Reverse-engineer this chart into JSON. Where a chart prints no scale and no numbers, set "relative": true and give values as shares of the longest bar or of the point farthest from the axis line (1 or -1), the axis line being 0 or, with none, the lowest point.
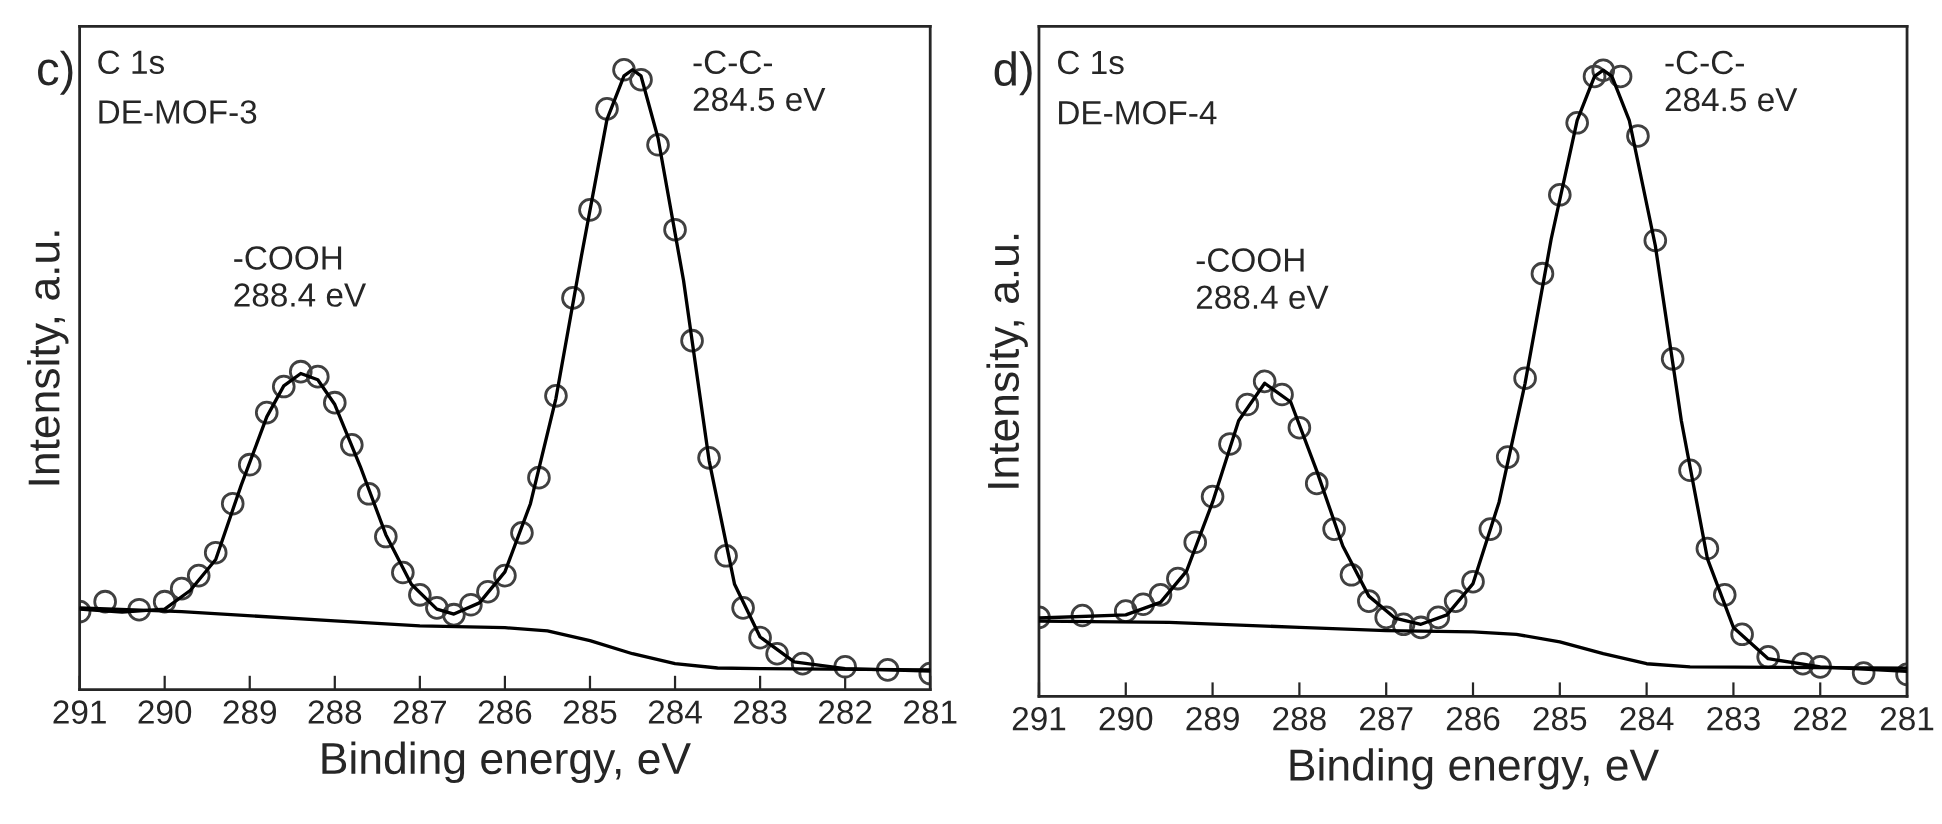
{
  "chart_data": [
    {
      "type": "line",
      "title": "c)",
      "xlabel": "Binding energy, eV",
      "ylabel": "Intensity, a.u.",
      "relative": true,
      "tick_labels": "x",
      "legend": false,
      "grid": false,
      "xlim": [
        291,
        281
      ],
      "xticks": [
        291,
        290,
        289,
        288,
        287,
        286,
        285,
        284,
        283,
        282,
        281
      ],
      "annotations": [
        "C 1s",
        "DE-MOF-3",
        "-COOH\n288.4 eV",
        "-C-C-\n284.5 eV"
      ],
      "series": [
        {
          "type": "scatter",
          "marker": "circle",
          "color": "#404040",
          "x": [
            291,
            290.7,
            290.3,
            290.0,
            289.8,
            289.6,
            289.4,
            289.2,
            289.0,
            288.8,
            288.6,
            288.4,
            288.2,
            288.0,
            287.8,
            287.6,
            287.4,
            287.2,
            287.0,
            286.8,
            286.6,
            286.4,
            286.2,
            286.0,
            285.8,
            285.6,
            285.4,
            285.2,
            285.0,
            284.8,
            284.6,
            284.4,
            284.2,
            284.0,
            283.8,
            283.6,
            283.4,
            283.2,
            283.0,
            282.8,
            282.5,
            282.0,
            281.5,
            281.0
          ],
          "values": [
            0.126,
            0.142,
            0.129,
            0.142,
            0.163,
            0.184,
            0.221,
            0.3,
            0.363,
            0.447,
            0.489,
            0.513,
            0.505,
            0.463,
            0.395,
            0.316,
            0.247,
            0.189,
            0.153,
            0.132,
            0.121,
            0.137,
            0.158,
            0.184,
            0.253,
            0.342,
            0.474,
            0.632,
            0.774,
            0.937,
            1.0,
            0.984,
            0.879,
            0.742,
            0.563,
            0.374,
            0.216,
            0.132,
            0.084,
            0.058,
            0.042,
            0.037,
            0.032,
            0.026
          ]
        },
        {
          "color": "#000000",
          "x": [
            291,
            290.5,
            290.0,
            289.7,
            289.4,
            289.1,
            288.8,
            288.6,
            288.4,
            288.2,
            288.0,
            287.7,
            287.4,
            287.1,
            286.8,
            286.6,
            286.3,
            286.0,
            285.7,
            285.4,
            285.1,
            284.8,
            284.6,
            284.5,
            284.4,
            284.2,
            283.9,
            283.6,
            283.3,
            283.0,
            282.6,
            282.0,
            281.0
          ],
          "values": [
            0.13,
            0.125,
            0.13,
            0.16,
            0.21,
            0.33,
            0.44,
            0.49,
            0.51,
            0.5,
            0.46,
            0.36,
            0.25,
            0.17,
            0.13,
            0.122,
            0.14,
            0.19,
            0.3,
            0.47,
            0.7,
            0.92,
            0.99,
            1.0,
            0.99,
            0.89,
            0.66,
            0.37,
            0.17,
            0.085,
            0.045,
            0.034,
            0.03
          ]
        },
        {
          "color": "#000000",
          "x": [
            291,
            289.8,
            288.0,
            287.0,
            286.0,
            285.5,
            285.0,
            284.5,
            284.0,
            283.5,
            283.0,
            281.0
          ],
          "values": [
            0.132,
            0.126,
            0.111,
            0.103,
            0.1,
            0.095,
            0.079,
            0.058,
            0.042,
            0.035,
            0.034,
            0.032
          ]
        }
      ]
    },
    {
      "type": "line",
      "title": "d)",
      "xlabel": "Binding energy, eV",
      "ylabel": "Intensity, a.u.",
      "relative": true,
      "tick_labels": "x",
      "legend": false,
      "grid": false,
      "xlim": [
        291,
        281
      ],
      "xticks": [
        291,
        290,
        289,
        288,
        287,
        286,
        285,
        284,
        283,
        282,
        281
      ],
      "annotations": [
        "C 1s",
        "DE-MOF-4",
        "-COOH\n288.4 eV",
        "-C-C-\n284.5 eV"
      ],
      "series": [
        {
          "type": "scatter",
          "marker": "circle",
          "color": "#404040",
          "x": [
            291,
            290.5,
            290.0,
            289.8,
            289.6,
            289.4,
            289.2,
            289.0,
            288.8,
            288.6,
            288.4,
            288.2,
            288.0,
            287.8,
            287.6,
            287.4,
            287.2,
            287.0,
            286.8,
            286.6,
            286.4,
            286.2,
            286.0,
            285.8,
            285.6,
            285.4,
            285.2,
            285.0,
            284.8,
            284.6,
            284.5,
            284.3,
            284.1,
            283.9,
            283.7,
            283.5,
            283.3,
            283.1,
            282.9,
            282.6,
            282.2,
            282.0,
            281.5,
            281.0
          ],
          "values": [
            0.126,
            0.129,
            0.136,
            0.147,
            0.162,
            0.188,
            0.246,
            0.319,
            0.403,
            0.466,
            0.503,
            0.482,
            0.429,
            0.34,
            0.267,
            0.194,
            0.152,
            0.126,
            0.115,
            0.11,
            0.126,
            0.152,
            0.183,
            0.267,
            0.382,
            0.508,
            0.675,
            0.801,
            0.916,
            0.99,
            1.0,
            0.99,
            0.895,
            0.728,
            0.539,
            0.361,
            0.236,
            0.162,
            0.099,
            0.063,
            0.052,
            0.047,
            0.037,
            0.035
          ]
        },
        {
          "color": "#000000",
          "x": [
            291,
            290.0,
            289.6,
            289.3,
            289.0,
            288.7,
            288.4,
            288.1,
            287.8,
            287.5,
            287.2,
            286.9,
            286.6,
            286.3,
            286.0,
            285.7,
            285.4,
            285.1,
            284.8,
            284.6,
            284.5,
            284.4,
            284.2,
            283.9,
            283.6,
            283.3,
            283.0,
            282.6,
            282.0,
            281.0
          ],
          "values": [
            0.125,
            0.13,
            0.15,
            0.2,
            0.31,
            0.44,
            0.5,
            0.47,
            0.36,
            0.24,
            0.16,
            0.125,
            0.115,
            0.13,
            0.18,
            0.31,
            0.5,
            0.73,
            0.92,
            0.99,
            1.0,
            0.99,
            0.92,
            0.72,
            0.44,
            0.22,
            0.11,
            0.06,
            0.047,
            0.04
          ]
        },
        {
          "color": "#000000",
          "x": [
            291,
            289.5,
            288.0,
            287.0,
            286.0,
            285.5,
            285.0,
            284.5,
            284.0,
            283.5,
            281.0
          ],
          "values": [
            0.12,
            0.118,
            0.11,
            0.105,
            0.103,
            0.099,
            0.087,
            0.068,
            0.052,
            0.047,
            0.045
          ]
        }
      ]
    }
  ]
}
